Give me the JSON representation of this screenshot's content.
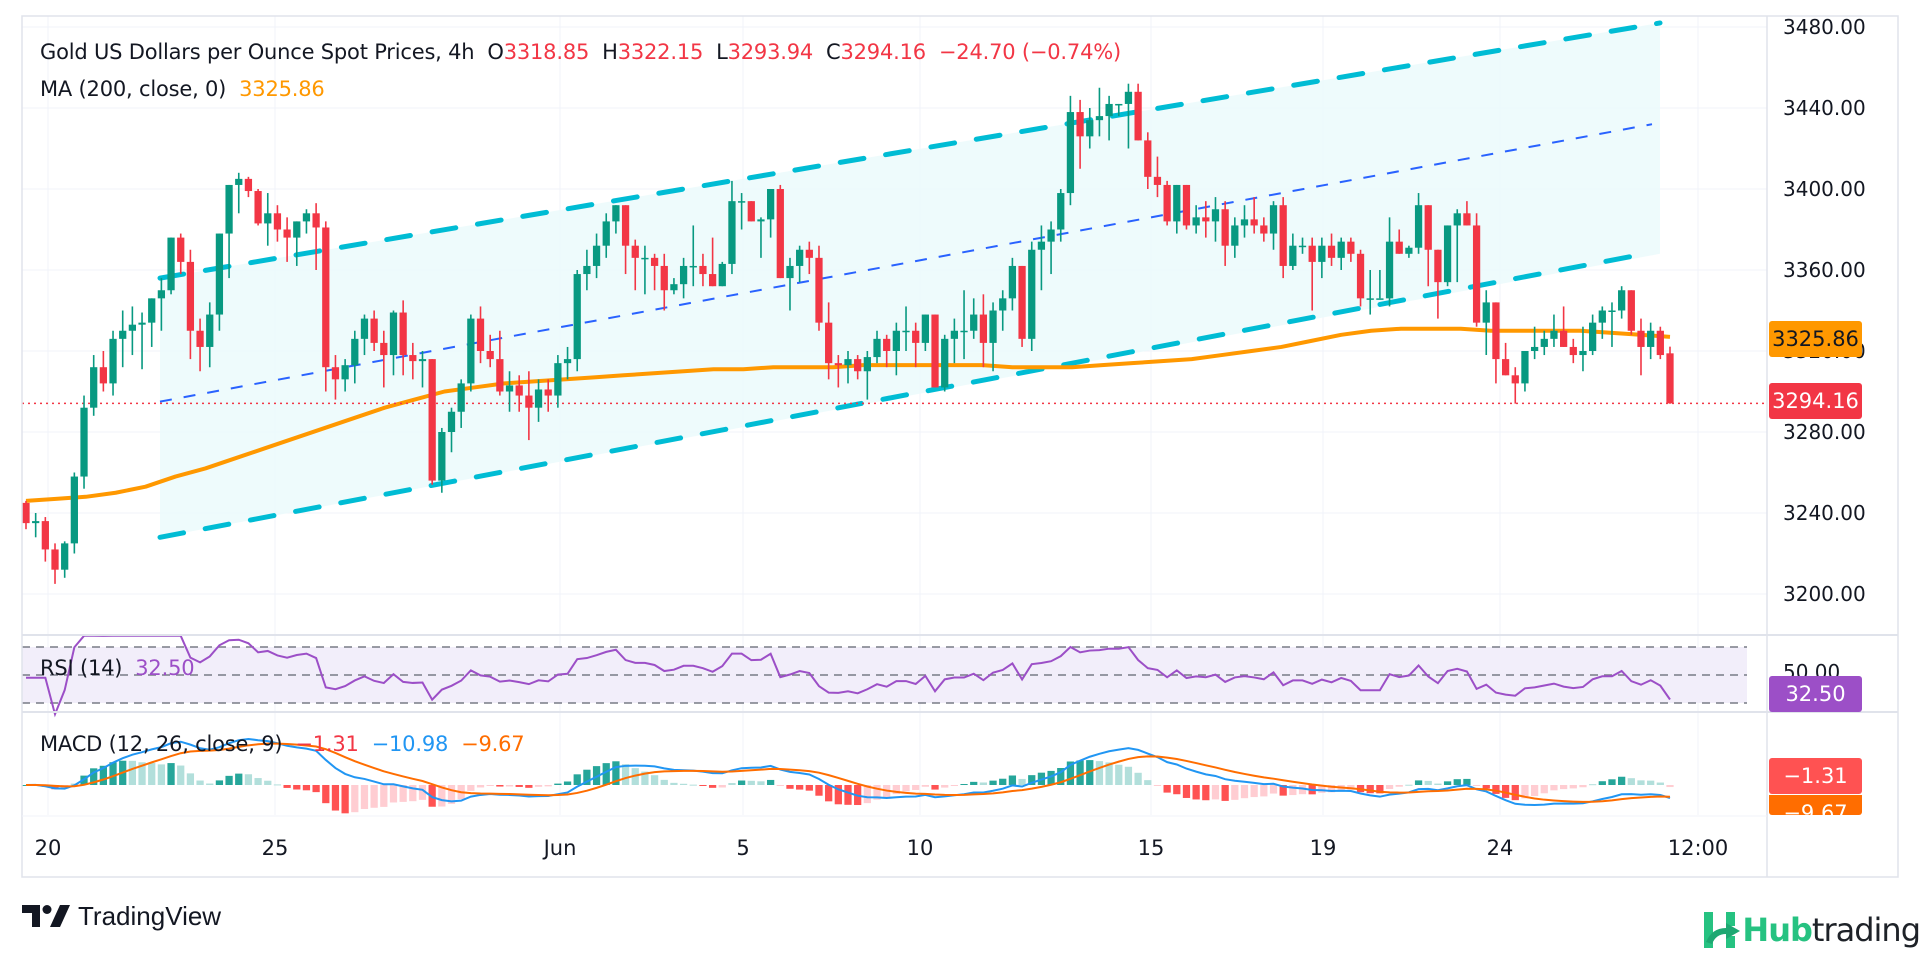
{
  "header": {
    "symbol_title": "Gold US Dollars per Ounce Spot Prices, 4h",
    "open_label": "O",
    "open": "3318.85",
    "high_label": "H",
    "high": "3322.15",
    "low_label": "L",
    "low": "3293.94",
    "close_label": "C",
    "close": "3294.16",
    "change": "−24.70 (−0.74%)"
  },
  "ma_legend": {
    "label": "MA (200, close, 0)",
    "value": "3325.86"
  },
  "rsi_legend": {
    "label": "RSI (14)",
    "value": "32.50"
  },
  "macd_legend": {
    "label": "MACD (12, 26, close, 9)",
    "hist": "−1.31",
    "macd": "−10.98",
    "signal": "−9.67"
  },
  "price_tags": {
    "ma": "3325.86",
    "last": "3294.16",
    "rsi": "32.50",
    "rsi_axis": "50.00",
    "macd_hist": "−1.31",
    "macd_signal": "−9.67"
  },
  "colors": {
    "up": "#089981",
    "down": "#f23645",
    "ma": "#ff9800",
    "rsi": "#9c4fc7",
    "macd": "#2196f3",
    "signal": "#ff6d00",
    "channel": "#00bcd4",
    "channel_mid": "#2962ff",
    "channel_fill": "#e0f7fa"
  },
  "branding": {
    "tradingview": "TradingView",
    "hub_green": "Hub",
    "hub_dark": "trading"
  },
  "chart_data": {
    "type": "candlestick",
    "title": "Gold US Dollars per Ounce Spot Prices, 4h",
    "xlabel": "",
    "ylabel": "",
    "ylim": [
      3180,
      3486
    ],
    "y_ticks": [
      "3480.00",
      "3440.00",
      "3400.00",
      "3360.00",
      "3320.00",
      "3280.00",
      "3240.00",
      "3200.00"
    ],
    "x_ticks": [
      "20",
      "25",
      "Jun",
      "5",
      "10",
      "15",
      "19",
      "24",
      "12:00"
    ],
    "last_price": 3294.16,
    "ma200_last": 3325.86,
    "ohlc": [
      [
        3245,
        3246,
        3232,
        3235
      ],
      [
        3235,
        3240,
        3228,
        3236
      ],
      [
        3236,
        3238,
        3216,
        3222
      ],
      [
        3222,
        3225,
        3205,
        3212
      ],
      [
        3212,
        3226,
        3208,
        3225
      ],
      [
        3225,
        3260,
        3220,
        3258
      ],
      [
        3258,
        3298,
        3252,
        3292
      ],
      [
        3292,
        3318,
        3288,
        3312
      ],
      [
        3312,
        3320,
        3300,
        3304
      ],
      [
        3304,
        3330,
        3298,
        3326
      ],
      [
        3326,
        3340,
        3312,
        3330
      ],
      [
        3330,
        3342,
        3318,
        3333
      ],
      [
        3333,
        3339,
        3311,
        3334
      ],
      [
        3334,
        3345,
        3322,
        3346
      ],
      [
        3346,
        3356,
        3330,
        3350
      ],
      [
        3350,
        3372,
        3348,
        3376
      ],
      [
        3376,
        3378,
        3358,
        3364
      ],
      [
        3364,
        3370,
        3316,
        3330
      ],
      [
        3330,
        3336,
        3310,
        3322
      ],
      [
        3322,
        3344,
        3312,
        3338
      ],
      [
        3338,
        3370,
        3330,
        3378
      ],
      [
        3378,
        3390,
        3356,
        3402
      ],
      [
        3402,
        3408,
        3388,
        3405
      ],
      [
        3405,
        3406,
        3396,
        3399
      ],
      [
        3399,
        3400,
        3382,
        3383
      ],
      [
        3383,
        3398,
        3372,
        3388
      ],
      [
        3388,
        3392,
        3374,
        3380
      ],
      [
        3380,
        3386,
        3364,
        3376
      ],
      [
        3376,
        3384,
        3362,
        3384
      ],
      [
        3384,
        3390,
        3378,
        3388
      ],
      [
        3388,
        3393,
        3360,
        3381
      ],
      [
        3381,
        3384,
        3300,
        3312
      ],
      [
        3312,
        3318,
        3296,
        3306
      ],
      [
        3306,
        3316,
        3300,
        3313
      ],
      [
        3313,
        3330,
        3304,
        3326
      ],
      [
        3326,
        3338,
        3318,
        3336
      ],
      [
        3336,
        3340,
        3320,
        3324
      ],
      [
        3324,
        3330,
        3302,
        3318
      ],
      [
        3318,
        3340,
        3308,
        3339
      ],
      [
        3339,
        3345,
        3308,
        3318
      ],
      [
        3318,
        3324,
        3306,
        3315
      ],
      [
        3315,
        3320,
        3302,
        3316
      ],
      [
        3316,
        3298,
        3254,
        3256
      ],
      [
        3256,
        3282,
        3250,
        3280
      ],
      [
        3280,
        3292,
        3270,
        3290
      ],
      [
        3290,
        3306,
        3282,
        3304
      ],
      [
        3304,
        3338,
        3300,
        3336
      ],
      [
        3336,
        3342,
        3314,
        3320
      ],
      [
        3320,
        3328,
        3312,
        3316
      ],
      [
        3316,
        3330,
        3298,
        3300
      ],
      [
        3300,
        3310,
        3290,
        3303
      ],
      [
        3303,
        3308,
        3290,
        3298
      ],
      [
        3298,
        3310,
        3276,
        3292
      ],
      [
        3292,
        3306,
        3285,
        3301
      ],
      [
        3301,
        3306,
        3290,
        3298
      ],
      [
        3298,
        3318,
        3292,
        3314
      ],
      [
        3314,
        3322,
        3306,
        3316
      ],
      [
        3316,
        3360,
        3310,
        3358
      ],
      [
        3358,
        3370,
        3350,
        3362
      ],
      [
        3362,
        3378,
        3356,
        3372
      ],
      [
        3372,
        3388,
        3366,
        3384
      ],
      [
        3384,
        3392,
        3378,
        3392
      ],
      [
        3392,
        3392,
        3358,
        3372
      ],
      [
        3372,
        3375,
        3350,
        3366
      ],
      [
        3366,
        3372,
        3348,
        3366
      ],
      [
        3366,
        3368,
        3350,
        3362
      ],
      [
        3362,
        3368,
        3340,
        3350
      ],
      [
        3350,
        3356,
        3348,
        3353
      ],
      [
        3353,
        3366,
        3346,
        3362
      ],
      [
        3362,
        3382,
        3352,
        3362
      ],
      [
        3362,
        3368,
        3352,
        3358
      ],
      [
        3358,
        3376,
        3355,
        3352
      ],
      [
        3352,
        3364,
        3352,
        3363
      ],
      [
        3363,
        3404,
        3358,
        3394
      ],
      [
        3394,
        3398,
        3380,
        3394
      ],
      [
        3394,
        3392,
        3384,
        3384
      ],
      [
        3384,
        3386,
        3366,
        3385
      ],
      [
        3385,
        3400,
        3376,
        3400
      ],
      [
        3400,
        3402,
        3364,
        3356
      ],
      [
        3356,
        3366,
        3340,
        3362
      ],
      [
        3362,
        3372,
        3354,
        3370
      ],
      [
        3370,
        3374,
        3358,
        3366
      ],
      [
        3366,
        3372,
        3330,
        3334
      ],
      [
        3334,
        3344,
        3306,
        3314
      ],
      [
        3314,
        3318,
        3302,
        3313
      ],
      [
        3313,
        3320,
        3304,
        3316
      ],
      [
        3316,
        3318,
        3306,
        3310
      ],
      [
        3310,
        3320,
        3296,
        3317
      ],
      [
        3317,
        3330,
        3314,
        3326
      ],
      [
        3326,
        3328,
        3312,
        3320
      ],
      [
        3320,
        3334,
        3308,
        3330
      ],
      [
        3330,
        3342,
        3320,
        3330
      ],
      [
        3330,
        3334,
        3312,
        3324
      ],
      [
        3324,
        3336,
        3320,
        3338
      ],
      [
        3338,
        3332,
        3302,
        3302
      ],
      [
        3302,
        3328,
        3300,
        3326
      ],
      [
        3326,
        3336,
        3314,
        3330
      ],
      [
        3330,
        3350,
        3316,
        3330
      ],
      [
        3330,
        3346,
        3326,
        3338
      ],
      [
        3338,
        3348,
        3312,
        3324
      ],
      [
        3324,
        3344,
        3310,
        3340
      ],
      [
        3340,
        3350,
        3330,
        3346
      ],
      [
        3346,
        3366,
        3340,
        3362
      ],
      [
        3362,
        3360,
        3322,
        3326
      ],
      [
        3326,
        3374,
        3320,
        3370
      ],
      [
        3370,
        3382,
        3350,
        3374
      ],
      [
        3374,
        3384,
        3358,
        3380
      ],
      [
        3380,
        3400,
        3374,
        3398
      ],
      [
        3398,
        3446,
        3392,
        3438
      ],
      [
        3438,
        3444,
        3410,
        3426
      ],
      [
        3426,
        3440,
        3420,
        3434
      ],
      [
        3434,
        3450,
        3426,
        3436
      ],
      [
        3436,
        3446,
        3424,
        3442
      ],
      [
        3442,
        3442,
        3436,
        3442
      ],
      [
        3442,
        3452,
        3420,
        3448
      ],
      [
        3448,
        3452,
        3424,
        3424
      ],
      [
        3424,
        3428,
        3400,
        3406
      ],
      [
        3406,
        3416,
        3396,
        3402
      ],
      [
        3402,
        3404,
        3382,
        3384
      ],
      [
        3384,
        3402,
        3378,
        3402
      ],
      [
        3402,
        3402,
        3380,
        3382
      ],
      [
        3382,
        3392,
        3378,
        3386
      ],
      [
        3386,
        3394,
        3376,
        3384
      ],
      [
        3384,
        3396,
        3374,
        3390
      ],
      [
        3390,
        3394,
        3362,
        3372
      ],
      [
        3372,
        3386,
        3366,
        3382
      ],
      [
        3382,
        3392,
        3376,
        3385
      ],
      [
        3385,
        3396,
        3378,
        3382
      ],
      [
        3382,
        3386,
        3374,
        3378
      ],
      [
        3378,
        3394,
        3370,
        3392
      ],
      [
        3392,
        3396,
        3356,
        3362
      ],
      [
        3362,
        3378,
        3360,
        3372
      ],
      [
        3372,
        3376,
        3368,
        3372
      ],
      [
        3372,
        3376,
        3340,
        3364
      ],
      [
        3364,
        3376,
        3356,
        3372
      ],
      [
        3372,
        3378,
        3362,
        3366
      ],
      [
        3366,
        3376,
        3360,
        3374
      ],
      [
        3374,
        3376,
        3364,
        3368
      ],
      [
        3368,
        3370,
        3342,
        3346
      ],
      [
        3346,
        3360,
        3338,
        3346
      ],
      [
        3346,
        3360,
        3346,
        3346
      ],
      [
        3346,
        3386,
        3342,
        3374
      ],
      [
        3374,
        3380,
        3368,
        3368
      ],
      [
        3368,
        3372,
        3366,
        3371
      ],
      [
        3371,
        3398,
        3368,
        3392
      ],
      [
        3392,
        3384,
        3352,
        3370
      ],
      [
        3370,
        3362,
        3336,
        3354
      ],
      [
        3354,
        3382,
        3352,
        3382
      ],
      [
        3382,
        3390,
        3354,
        3388
      ],
      [
        3388,
        3394,
        3382,
        3382
      ],
      [
        3382,
        3388,
        3332,
        3334
      ],
      [
        3334,
        3350,
        3318,
        3344
      ],
      [
        3344,
        3344,
        3304,
        3316
      ],
      [
        3316,
        3324,
        3308,
        3308
      ],
      [
        3308,
        3312,
        3294,
        3304
      ],
      [
        3304,
        3320,
        3300,
        3320
      ],
      [
        3320,
        3332,
        3316,
        3322
      ],
      [
        3322,
        3330,
        3318,
        3326
      ],
      [
        3326,
        3338,
        3322,
        3330
      ],
      [
        3330,
        3342,
        3326,
        3322
      ],
      [
        3322,
        3326,
        3314,
        3318
      ],
      [
        3318,
        3332,
        3310,
        3320
      ],
      [
        3320,
        3338,
        3318,
        3334
      ],
      [
        3334,
        3342,
        3326,
        3340
      ],
      [
        3340,
        3344,
        3322,
        3340
      ],
      [
        3340,
        3352,
        3336,
        3350
      ],
      [
        3350,
        3346,
        3328,
        3330
      ],
      [
        3330,
        3336,
        3308,
        3322
      ],
      [
        3322,
        3334,
        3316,
        3330
      ],
      [
        3330,
        3332,
        3316,
        3318
      ],
      [
        3318.85,
        3322.15,
        3293.94,
        3294.16
      ]
    ],
    "ma200": [
      3246,
      3247,
      3248,
      3250,
      3253,
      3258,
      3262,
      3267,
      3272,
      3277,
      3282,
      3287,
      3292,
      3296,
      3300,
      3302,
      3304,
      3305,
      3306,
      3307,
      3308,
      3309,
      3310,
      3311,
      3311,
      3312,
      3312,
      3312,
      3313,
      3313,
      3313,
      3313,
      3313,
      3312,
      3312,
      3312,
      3313,
      3314,
      3315,
      3316,
      3318,
      3320,
      3322,
      3325,
      3328,
      3330,
      3331,
      3331,
      3331,
      3330,
      3330,
      3330,
      3330,
      3329,
      3328,
      3327
    ],
    "channel": {
      "upper": [
        [
          0,
          3356
        ],
        [
          1,
          3482
        ]
      ],
      "middle": [
        [
          0,
          3295
        ],
        [
          1,
          3432
        ]
      ],
      "lower": [
        [
          0,
          3228
        ],
        [
          1,
          3368
        ]
      ]
    },
    "rsi": {
      "ylim": [
        20,
        80
      ],
      "bands": [
        70,
        50,
        30
      ],
      "last": 32.5
    },
    "macd": {
      "hist_last": -1.31,
      "macd_last": -10.98,
      "signal_last": -9.67
    }
  }
}
